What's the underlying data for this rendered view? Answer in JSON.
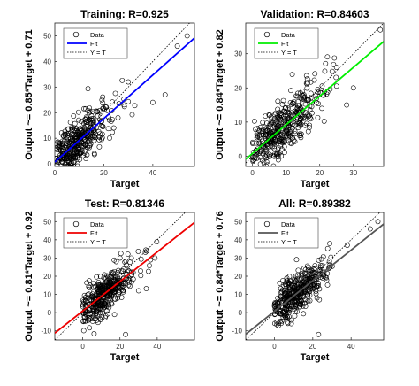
{
  "chart_data": [
    {
      "type": "scatter",
      "title": "Training: R=0.925",
      "xlabel": "Target",
      "ylabel": "Output ~= 0.85*Target + 0.71",
      "xlim": [
        0,
        57
      ],
      "ylim": [
        -1,
        55
      ],
      "xticks": [
        0,
        20,
        40
      ],
      "yticks": [
        0,
        10,
        20,
        30,
        40,
        50
      ],
      "fit": {
        "slope": 0.85,
        "intercept": 0.71,
        "color": "#0000ff"
      },
      "identity_line": true,
      "legend": {
        "position": "top-left",
        "entries": [
          "Data",
          "Fit",
          "Y = T"
        ]
      },
      "cloud_center": [
        8,
        8
      ],
      "cloud_spread": [
        6,
        6
      ],
      "outliers": [
        [
          40,
          24
        ],
        [
          50,
          46
        ],
        [
          54,
          50
        ],
        [
          30,
          32
        ],
        [
          45,
          27
        ]
      ]
    },
    {
      "type": "scatter",
      "title": "Validation: R=0.84603",
      "xlabel": "Target",
      "ylabel": "Output ~= 0.84*Target + 0.82",
      "xlim": [
        -2,
        39
      ],
      "ylim": [
        -3,
        39
      ],
      "xticks": [
        0,
        10,
        20,
        30
      ],
      "yticks": [
        0,
        10,
        20,
        30
      ],
      "fit": {
        "slope": 0.84,
        "intercept": 0.82,
        "color": "#00ee00"
      },
      "identity_line": true,
      "legend": {
        "position": "top-left",
        "entries": [
          "Data",
          "Fit",
          "Y = T"
        ]
      },
      "cloud_center": [
        7,
        7
      ],
      "cloud_spread": [
        5,
        5
      ],
      "outliers": [
        [
          38,
          37
        ],
        [
          28,
          15
        ],
        [
          30,
          20
        ],
        [
          25,
          26
        ]
      ]
    },
    {
      "type": "scatter",
      "title": "Test: R=0.81346",
      "xlabel": "Target",
      "ylabel": "Output ~= 0.81*Target + 0.92",
      "xlim": [
        -15,
        60
      ],
      "ylim": [
        -15,
        55
      ],
      "xticks": [
        0,
        20,
        40
      ],
      "yticks": [
        -10,
        0,
        10,
        20,
        30,
        40,
        50
      ],
      "fit": {
        "slope": 0.81,
        "intercept": 0.92,
        "color": "#ee0000"
      },
      "identity_line": true,
      "legend": {
        "position": "top-left",
        "entries": [
          "Data",
          "Fit",
          "Y = T"
        ]
      },
      "cloud_center": [
        10,
        10
      ],
      "cloud_spread": [
        7,
        7
      ],
      "outliers": [
        [
          18,
          28
        ],
        [
          20,
          30
        ],
        [
          23,
          -12
        ],
        [
          30,
          12
        ]
      ]
    },
    {
      "type": "scatter",
      "title": "All: R=0.89382",
      "xlabel": "Target",
      "ylabel": "Output ~= 0.84*Target + 0.76",
      "xlim": [
        -15,
        57
      ],
      "ylim": [
        -15,
        55
      ],
      "xticks": [
        0,
        20,
        40
      ],
      "yticks": [
        -10,
        0,
        10,
        20,
        30,
        40,
        50
      ],
      "fit": {
        "slope": 0.84,
        "intercept": 0.76,
        "color": "#555555"
      },
      "identity_line": true,
      "legend": {
        "position": "top-left",
        "entries": [
          "Data",
          "Fit",
          "Y = T"
        ]
      },
      "cloud_center": [
        10,
        10
      ],
      "cloud_spread": [
        7,
        7
      ],
      "outliers": [
        [
          50,
          46
        ],
        [
          54,
          50
        ],
        [
          38,
          37
        ],
        [
          23,
          -12
        ]
      ]
    }
  ]
}
